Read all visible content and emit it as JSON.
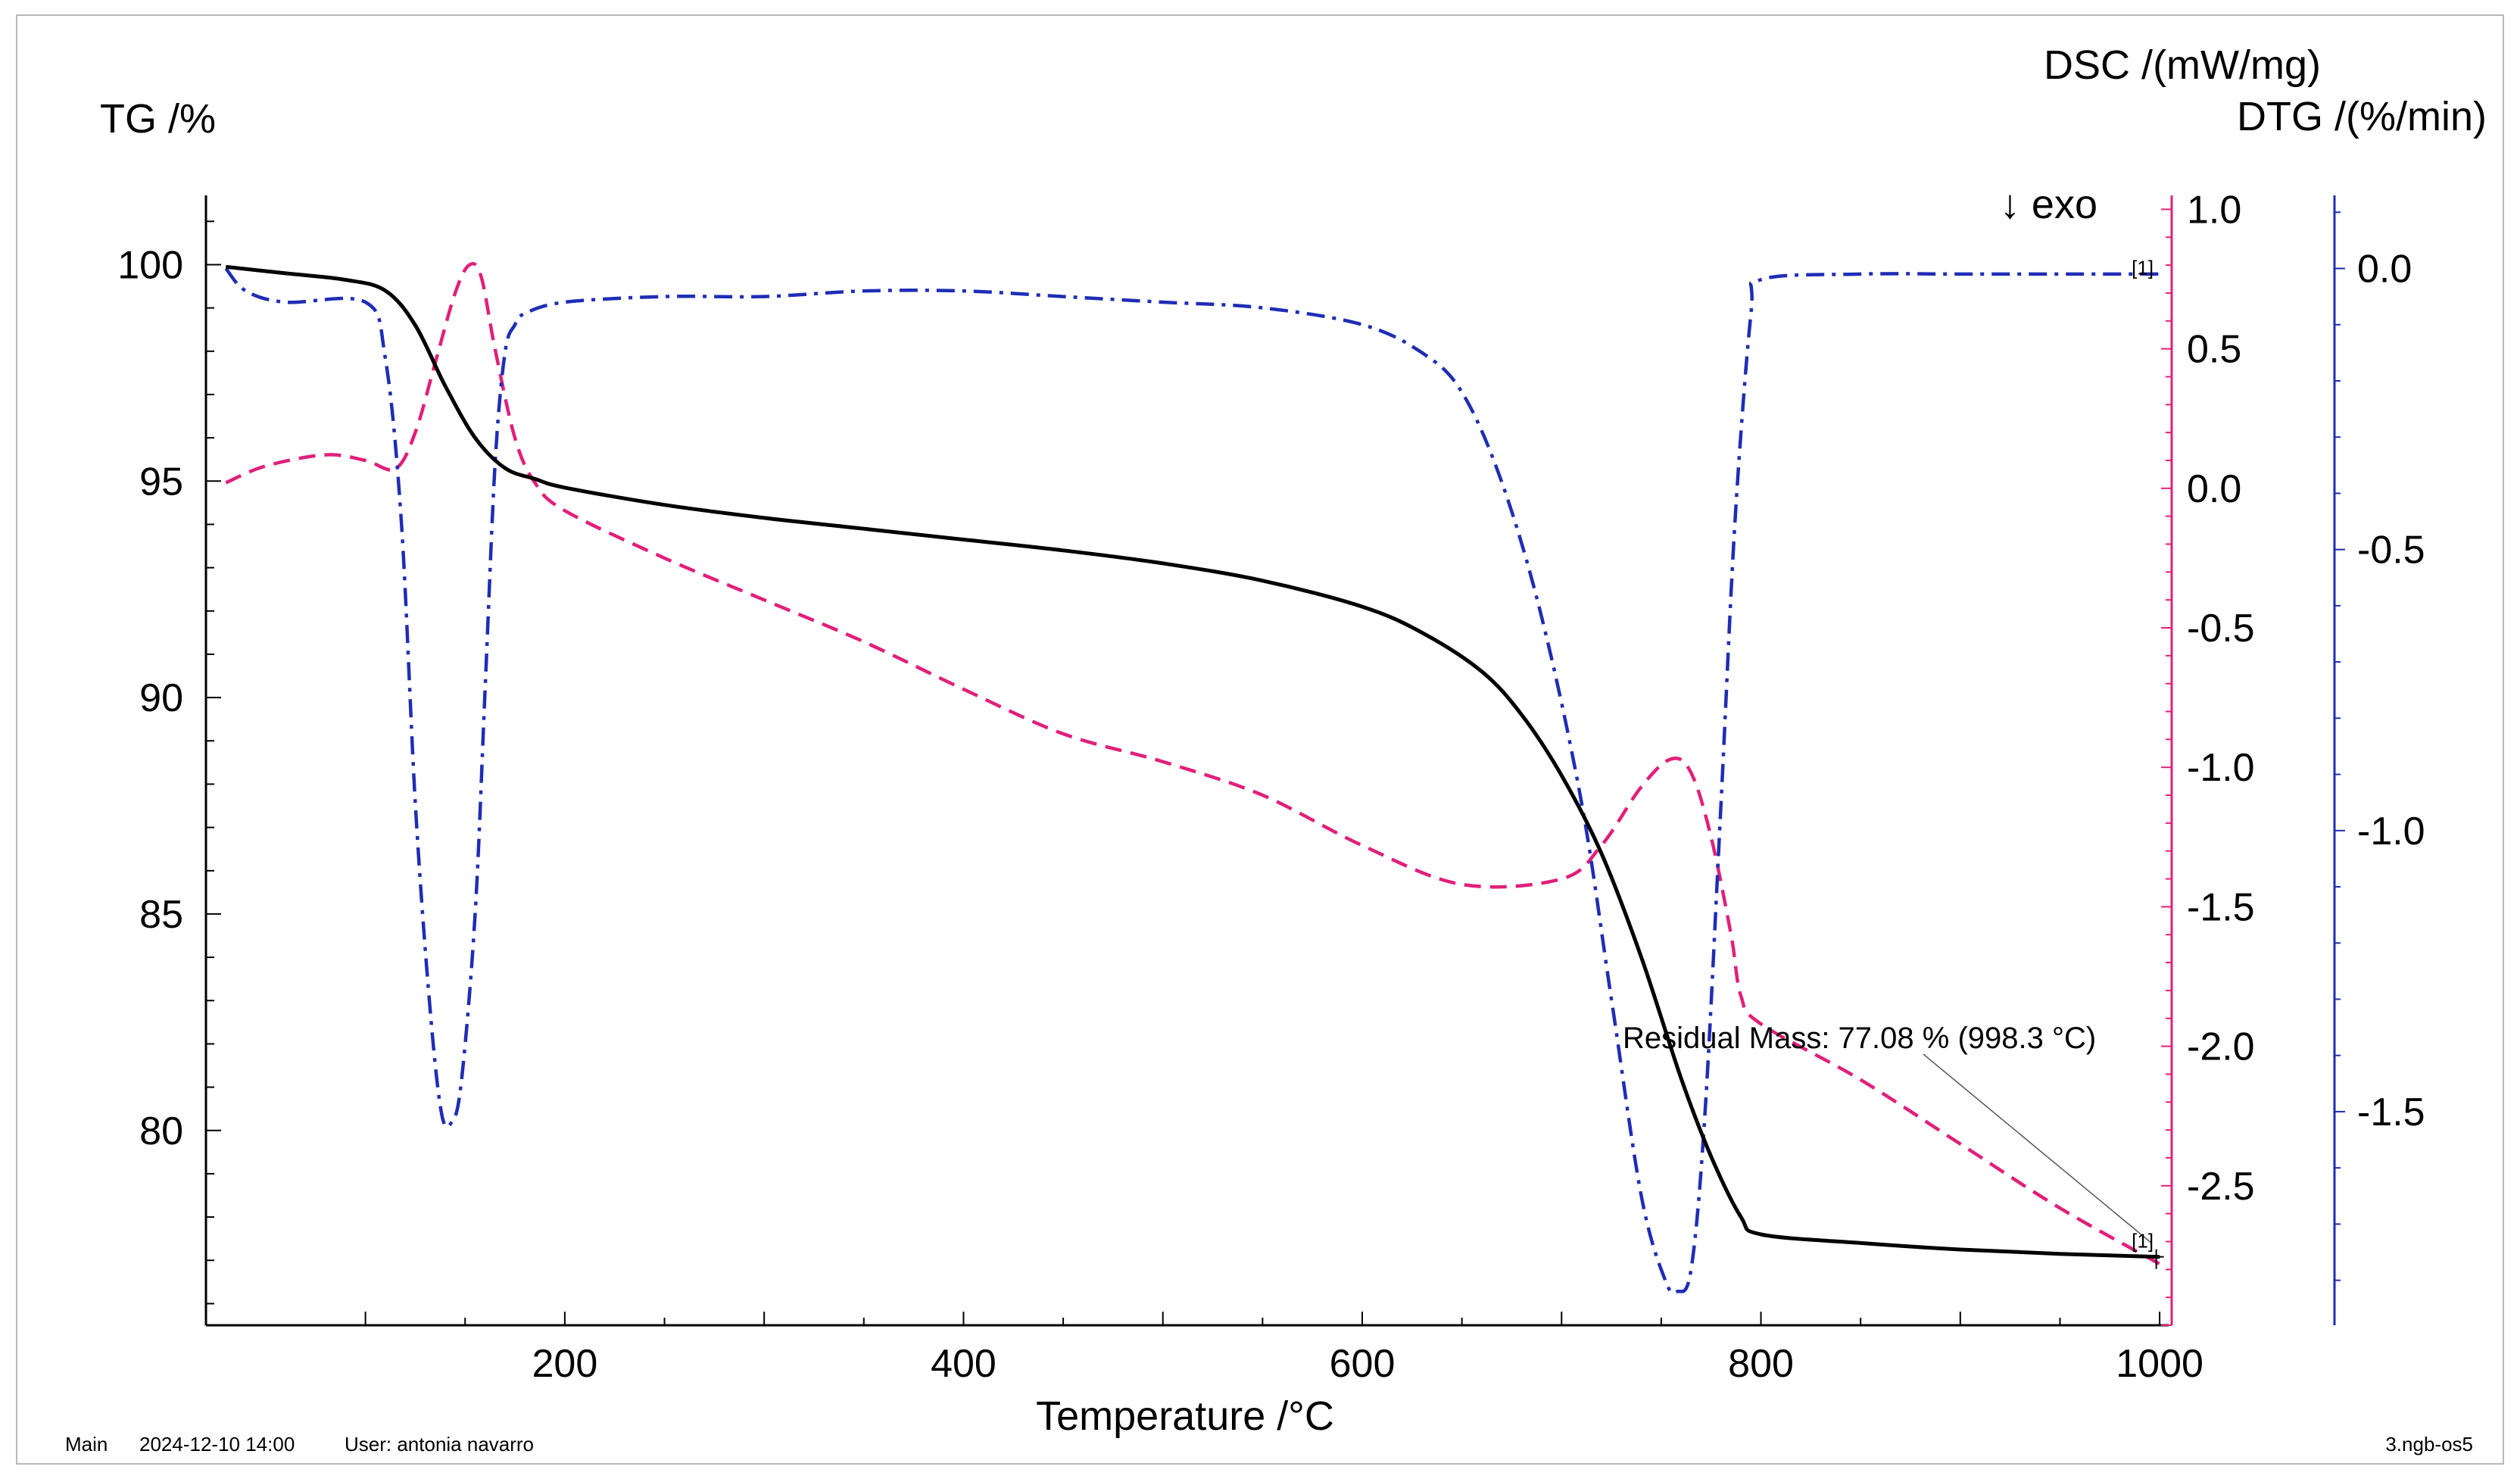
{
  "chart_data": {
    "type": "line",
    "title": "",
    "xlabel": "Temperature /°C",
    "xlim": [
      20,
      1003
    ],
    "xticks": [
      200,
      400,
      600,
      800,
      1000
    ],
    "axes": {
      "tg": {
        "label": "TG /%",
        "ylim": [
          75.5,
          101.6
        ],
        "ticks": [
          100,
          95,
          90,
          85,
          80
        ],
        "color": "#000000"
      },
      "dsc": {
        "label": "DSC /(mW/mg)",
        "ylim": [
          -3.0,
          1.05
        ],
        "ticks": [
          1.0,
          0.5,
          0.0,
          -0.5,
          -1.0,
          -1.5,
          -2.0,
          -2.5
        ],
        "color": "#e0207a"
      },
      "dtg": {
        "label": "DTG /(%/min)",
        "ylim": [
          -1.88,
          0.13
        ],
        "ticks": [
          0.0,
          -0.5,
          -1.0,
          -1.5
        ],
        "color": "#1f2db5"
      }
    },
    "exo_label": "↓ exo",
    "series": [
      {
        "name": "TG",
        "axis": "tg",
        "style": "solid",
        "color": "#000000",
        "x": [
          30,
          60,
          90,
          110,
          125,
          140,
          155,
          170,
          185,
          200,
          250,
          300,
          350,
          400,
          450,
          500,
          550,
          600,
          630,
          660,
          680,
          700,
          720,
          740,
          760,
          775,
          790,
          800,
          850,
          900,
          950,
          1000
        ],
        "y": [
          99.95,
          99.8,
          99.65,
          99.4,
          98.6,
          97.2,
          96.0,
          95.3,
          95.05,
          94.85,
          94.45,
          94.15,
          93.9,
          93.65,
          93.4,
          93.1,
          92.7,
          92.1,
          91.5,
          90.6,
          89.6,
          88.2,
          86.4,
          84.0,
          81.2,
          79.4,
          78.0,
          77.6,
          77.4,
          77.25,
          77.15,
          77.08
        ]
      },
      {
        "name": "DSC",
        "axis": "dsc",
        "style": "dashed",
        "color": "#e0207a",
        "x": [
          30,
          50,
          80,
          100,
          115,
          125,
          135,
          145,
          152,
          158,
          165,
          175,
          185,
          200,
          250,
          300,
          350,
          400,
          450,
          500,
          550,
          600,
          650,
          700,
          720,
          740,
          755,
          765,
          775,
          785,
          790,
          800,
          850,
          900,
          950,
          1000
        ],
        "y": [
          0.02,
          0.08,
          0.12,
          0.1,
          0.07,
          0.2,
          0.45,
          0.7,
          0.8,
          0.76,
          0.5,
          0.18,
          0.02,
          -0.08,
          -0.25,
          -0.4,
          -0.55,
          -0.72,
          -0.88,
          -0.98,
          -1.1,
          -1.28,
          -1.42,
          -1.4,
          -1.28,
          -1.07,
          -0.97,
          -1.02,
          -1.25,
          -1.6,
          -1.82,
          -1.92,
          -2.12,
          -2.35,
          -2.58,
          -2.78
        ]
      },
      {
        "name": "DTG",
        "axis": "dtg",
        "style": "dashdot",
        "color": "#1f2db5",
        "x": [
          30,
          40,
          60,
          100,
          110,
          118,
          125,
          132,
          138,
          143,
          148,
          155,
          160,
          165,
          170,
          175,
          180,
          200,
          250,
          300,
          350,
          400,
          450,
          500,
          550,
          600,
          630,
          650,
          670,
          690,
          710,
          725,
          740,
          752,
          758,
          765,
          772,
          780,
          787,
          795,
          800,
          850,
          900,
          950,
          1000
        ],
        "y": [
          0.0,
          -0.04,
          -0.06,
          -0.06,
          -0.16,
          -0.45,
          -0.95,
          -1.3,
          -1.5,
          -1.52,
          -1.45,
          -1.15,
          -0.75,
          -0.35,
          -0.15,
          -0.1,
          -0.08,
          -0.06,
          -0.05,
          -0.05,
          -0.04,
          -0.04,
          -0.05,
          -0.06,
          -0.07,
          -0.1,
          -0.15,
          -0.22,
          -0.38,
          -0.62,
          -0.95,
          -1.3,
          -1.65,
          -1.8,
          -1.82,
          -1.78,
          -1.5,
          -0.95,
          -0.45,
          -0.08,
          -0.02,
          -0.01,
          -0.01,
          -0.01,
          -0.01
        ]
      }
    ],
    "annotations": {
      "residual": "Residual Mass: 77.08 % (998.3 °C)",
      "residual_point": {
        "x": 998.3,
        "y": 77.08
      },
      "marker": "[1]"
    }
  },
  "footer": {
    "main": "Main",
    "datetime": "2024-12-10 14:00",
    "user": "User: antonia navarro",
    "file": "3.ngb-os5"
  }
}
